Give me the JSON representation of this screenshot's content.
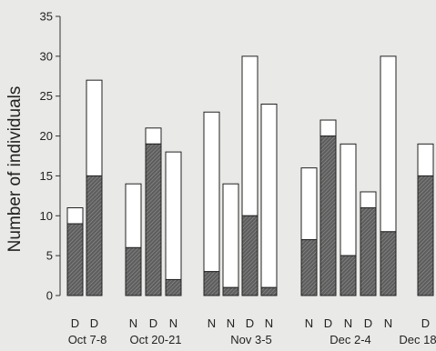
{
  "chart_data": {
    "type": "bar",
    "stacked": true,
    "title": "",
    "xlabel": "",
    "ylabel": "Number of individuals",
    "ylim": [
      0,
      35
    ],
    "yticks": [
      0,
      5,
      10,
      15,
      20,
      25,
      30,
      35
    ],
    "grid": false,
    "legend": "none",
    "bars": [
      {
        "label": "D",
        "group": "Oct 7-8",
        "bottom": 9,
        "total": 11
      },
      {
        "label": "D",
        "group": "Oct 7-8",
        "bottom": 15,
        "total": 27
      },
      {
        "label": "N",
        "group": "Oct 20-21",
        "bottom": 6,
        "total": 14
      },
      {
        "label": "D",
        "group": "Oct 20-21",
        "bottom": 19,
        "total": 21
      },
      {
        "label": "N",
        "group": "Oct 20-21",
        "bottom": 2,
        "total": 18
      },
      {
        "label": "N",
        "group": "Nov 3-5",
        "bottom": 3,
        "total": 23
      },
      {
        "label": "N",
        "group": "Nov 3-5",
        "bottom": 1,
        "total": 14
      },
      {
        "label": "D",
        "group": "Nov 3-5",
        "bottom": 10,
        "total": 30
      },
      {
        "label": "N",
        "group": "Nov 3-5",
        "bottom": 1,
        "total": 24
      },
      {
        "label": "N",
        "group": "Dec 2-4",
        "bottom": 7,
        "total": 16
      },
      {
        "label": "D",
        "group": "Dec 2-4",
        "bottom": 20,
        "total": 22
      },
      {
        "label": "N",
        "group": "Dec 2-4",
        "bottom": 5,
        "total": 19
      },
      {
        "label": "D",
        "group": "Dec 2-4",
        "bottom": 11,
        "total": 13
      },
      {
        "label": "N",
        "group": "Dec 2-4",
        "bottom": 8,
        "total": 30
      },
      {
        "label": "D",
        "group": "Dec 18",
        "bottom": 15,
        "total": 19
      }
    ],
    "groups": [
      "Oct 7-8",
      "Oct 20-21",
      "Nov 3-5",
      "Dec 2-4",
      "Dec 18"
    ],
    "colors": {
      "hatched_fill": "#6f6f6f",
      "open_fill": "#ffffff",
      "outline": "#222222"
    }
  }
}
